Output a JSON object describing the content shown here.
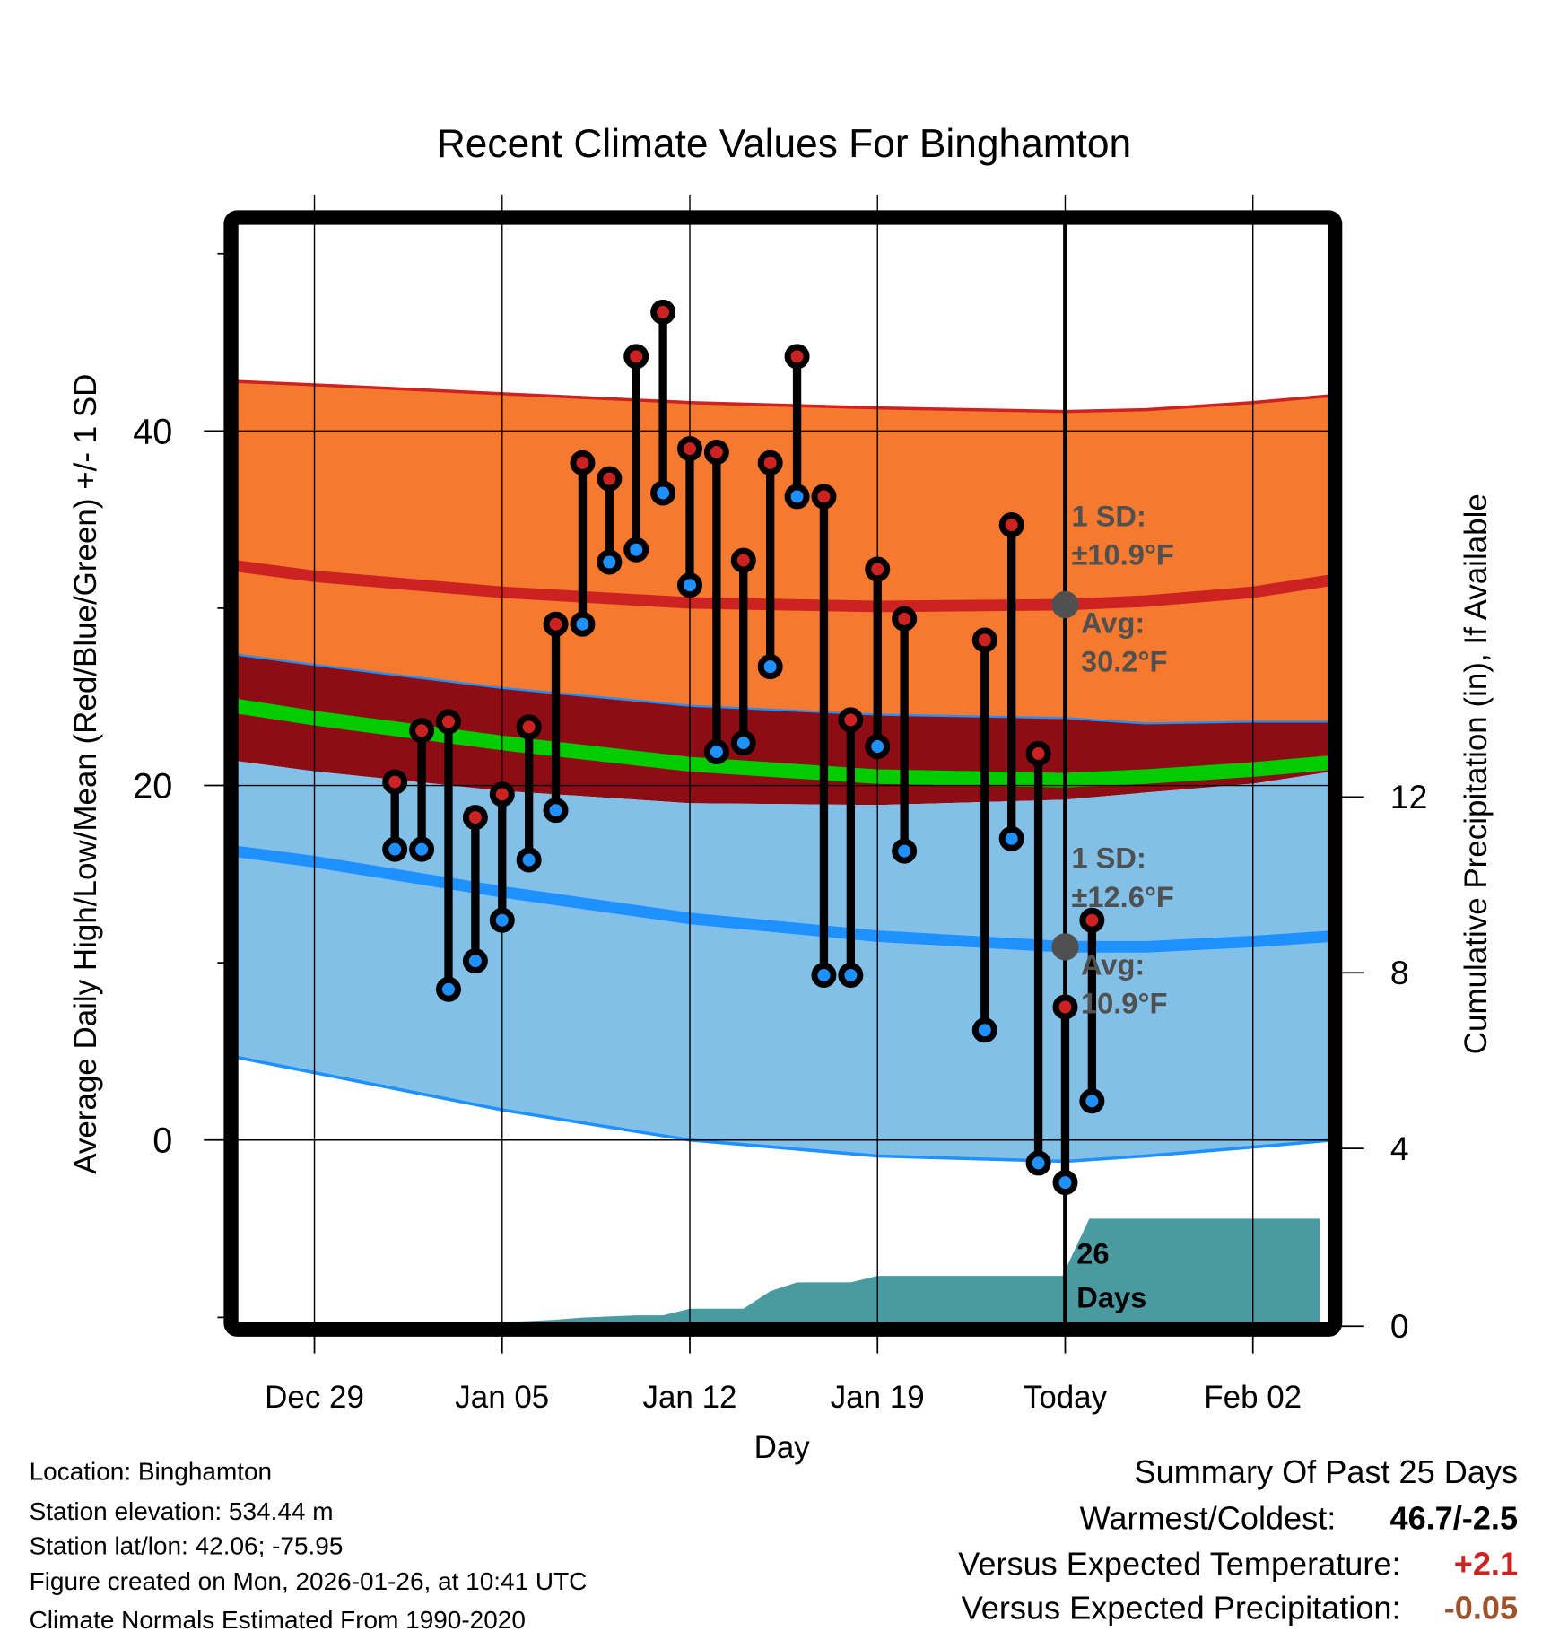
{
  "chart_data": {
    "type": "line",
    "title": "Recent Climate Values For Binghamton",
    "xlabel": "Day",
    "ylabel": "Average Daily High/Low/Mean (Red/Blue/Green) +/- 1 SD",
    "y2label": "Cumulative Precipitation (in), If Available",
    "ylim": [
      -10,
      50
    ],
    "y2lim": [
      0,
      19
    ],
    "xlim_days": [
      -28.5,
      9.5
    ],
    "grid": true,
    "yticks": [
      0,
      20,
      40
    ],
    "yticks_minor": [
      -10,
      10,
      30,
      50
    ],
    "y2ticks": [
      0,
      4,
      8,
      12
    ],
    "xticks": [
      {
        "day": -28,
        "label": "Dec 29"
      },
      {
        "day": -21,
        "label": "Jan 05"
      },
      {
        "day": -14,
        "label": "Jan 12"
      },
      {
        "day": -7,
        "label": "Jan 19"
      },
      {
        "day": 0,
        "label": "Today"
      },
      {
        "day": 7,
        "label": "Feb 02"
      }
    ],
    "normals": {
      "days": [
        -31,
        -28,
        -21,
        -14,
        -7,
        0,
        3,
        7,
        10
      ],
      "high_sd_top": [
        42.8,
        42.6,
        42.1,
        41.6,
        41.3,
        41.1,
        41.2,
        41.6,
        42.0
      ],
      "high_avg": [
        32.4,
        31.8,
        30.9,
        30.3,
        30.1,
        30.2,
        30.4,
        30.9,
        31.6
      ],
      "high_sd_bottom": [
        27.4,
        26.8,
        25.5,
        24.5,
        24.0,
        23.8,
        23.5,
        23.6,
        23.6
      ],
      "mean_avg": [
        24.5,
        23.8,
        22.4,
        21.2,
        20.5,
        20.3,
        20.5,
        20.9,
        21.3
      ],
      "low_sd_top": [
        21.4,
        20.8,
        19.7,
        19.0,
        18.9,
        19.2,
        19.6,
        20.1,
        20.8
      ],
      "low_avg": [
        16.3,
        15.7,
        14.0,
        12.5,
        11.5,
        10.9,
        10.9,
        11.2,
        11.5
      ],
      "low_sd_bottom": [
        4.7,
        3.8,
        1.7,
        0.0,
        -0.9,
        -1.2,
        -0.9,
        -0.4,
        0.0
      ]
    },
    "series": [
      {
        "name": "Daily High",
        "color": "#cc2222",
        "days": [
          -25,
          -24,
          -23,
          -22,
          -21,
          -20,
          -19,
          -18,
          -17,
          -16,
          -15,
          -14,
          -13,
          -12,
          -11,
          -10,
          -9,
          -8,
          -7,
          -6,
          -3,
          -2,
          -1,
          0,
          1
        ],
        "values": [
          20.2,
          23.1,
          23.6,
          18.2,
          19.5,
          23.3,
          29.1,
          38.2,
          37.3,
          44.2,
          46.7,
          39.0,
          38.8,
          32.7,
          38.2,
          44.2,
          36.3,
          23.7,
          32.2,
          29.4,
          28.2,
          34.7,
          21.8,
          7.5,
          12.4
        ]
      },
      {
        "name": "Daily Low",
        "color": "#1e90ff",
        "days": [
          -25,
          -24,
          -23,
          -22,
          -21,
          -20,
          -19,
          -18,
          -17,
          -16,
          -15,
          -14,
          -13,
          -12,
          -11,
          -10,
          -9,
          -8,
          -7,
          -6,
          -3,
          -2,
          -1,
          0,
          1
        ],
        "values": [
          16.4,
          16.4,
          8.5,
          10.1,
          12.4,
          15.8,
          18.6,
          29.1,
          32.6,
          33.3,
          36.5,
          31.3,
          21.9,
          22.4,
          26.7,
          36.3,
          9.3,
          9.3,
          22.2,
          16.3,
          6.2,
          17.0,
          -1.3,
          -2.4,
          2.2
        ]
      }
    ],
    "precipitation": {
      "name": "Cumulative Precipitation",
      "days": [
        -28.5,
        -23,
        -21,
        -20,
        -19,
        -18,
        -16,
        -15,
        -14,
        -13,
        -12,
        -11,
        -10,
        -9,
        -8,
        -7,
        -6,
        -5,
        -4,
        -3,
        -2,
        -1,
        -0.1,
        0.9,
        9.5
      ],
      "values": [
        0,
        0,
        0.05,
        0.07,
        0.1,
        0.15,
        0.2,
        0.2,
        0.35,
        0.35,
        0.35,
        0.75,
        0.95,
        0.95,
        0.95,
        1.1,
        1.1,
        1.1,
        1.1,
        1.1,
        1.1,
        1.1,
        1.1,
        2.4,
        2.4
      ],
      "color": "#4a9aa2"
    },
    "annotations": {
      "high": {
        "sd_line1": "1 SD:",
        "sd_line2": "±10.9°F",
        "avg_line1": "Avg:",
        "avg_line2": "30.2°F",
        "avg_value": 30.2
      },
      "low": {
        "sd_line1": "1 SD:",
        "sd_line2": "±12.6°F",
        "avg_line1": "Avg:",
        "avg_line2": "10.9°F",
        "avg_value": 10.9
      },
      "days_label_line1": "26",
      "days_label_line2": "Days"
    }
  },
  "colors": {
    "high_band": "#f5792e",
    "high_line": "#cc2222",
    "mean_band": "#8e0d14",
    "mean_line": "#00cc00",
    "low_band": "#82c0e8",
    "low_line": "#1e90ff",
    "precip": "#4a9aa2",
    "annotation": "#505050",
    "warm_value": "#cc2222",
    "precip_value": "#a0522d"
  },
  "footer": {
    "location": "Location: Binghamton",
    "elevation": "Station elevation: 534.44 m",
    "latlon": "Station lat/lon: 42.06; -75.95",
    "created": "Figure created on Mon, 2026-01-26, at 10:41 UTC",
    "normals": "Climate Normals Estimated From 1990-2020"
  },
  "summary": {
    "title": "Summary Of Past 25 Days",
    "warmest_label": "Warmest/Coldest:",
    "warmest_value": "46.7/-2.5",
    "temp_label": "Versus Expected Temperature:",
    "temp_value": "+2.1",
    "precip_label": "Versus Expected Precipitation:",
    "precip_value": "-0.05"
  }
}
